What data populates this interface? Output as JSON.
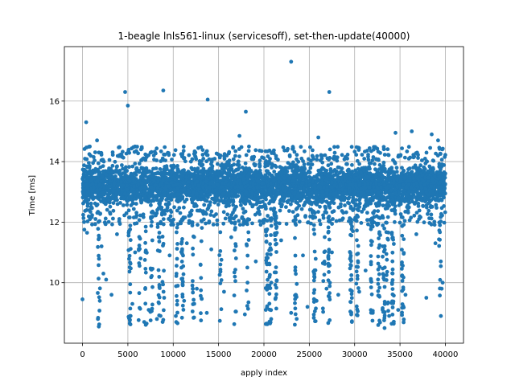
{
  "chart_data": {
    "type": "scatter",
    "title": "1-beagle lnls561-linux (servicesoff), set-then-update(40000)",
    "xlabel": "apply index",
    "ylabel": "Time [ms]",
    "xlim": [
      -2000,
      42000
    ],
    "ylim": [
      8.0,
      17.8
    ],
    "xticks": [
      0,
      5000,
      10000,
      15000,
      20000,
      25000,
      30000,
      35000,
      40000
    ],
    "xtick_labels": [
      "0",
      "5000",
      "10000",
      "15000",
      "20000",
      "25000",
      "30000",
      "35000",
      "40000"
    ],
    "yticks": [
      10,
      12,
      14,
      16
    ],
    "ytick_labels": [
      "10",
      "12",
      "14",
      "16"
    ],
    "grid": true,
    "marker_color": "#1f77b4",
    "n_points": 40000,
    "band": {
      "x_range": [
        0,
        40000
      ],
      "y_range": [
        12.4,
        14.0
      ],
      "description_note": null
    },
    "series": [
      {
        "points": [
          [
            0,
            9.45
          ],
          [
            200,
            11.75
          ],
          [
            500,
            11.65
          ],
          [
            400,
            15.3
          ],
          [
            800,
            14.5
          ],
          [
            1600,
            14.7
          ],
          [
            4700,
            16.3
          ],
          [
            5000,
            15.85
          ],
          [
            8900,
            16.35
          ],
          [
            13800,
            16.05
          ],
          [
            18000,
            15.65
          ],
          [
            23000,
            17.3
          ],
          [
            27200,
            16.3
          ],
          [
            26000,
            14.8
          ],
          [
            17300,
            14.85
          ],
          [
            34500,
            14.95
          ],
          [
            36300,
            15.0
          ],
          [
            38500,
            14.9
          ],
          [
            39200,
            14.7
          ],
          [
            1700,
            8.8
          ],
          [
            1800,
            8.55
          ],
          [
            2300,
            10.3
          ],
          [
            2600,
            10.1
          ],
          [
            1900,
            9.4
          ],
          [
            3200,
            9.6
          ],
          [
            5200,
            8.65
          ],
          [
            5300,
            8.9
          ],
          [
            5500,
            9.3
          ],
          [
            6800,
            8.7
          ],
          [
            7300,
            9.1
          ],
          [
            8200,
            8.8
          ],
          [
            8600,
            8.9
          ],
          [
            9000,
            9.5
          ],
          [
            10500,
            9.9
          ],
          [
            11200,
            9.4
          ],
          [
            12300,
            8.85
          ],
          [
            12600,
            9.8
          ],
          [
            13700,
            9.0
          ],
          [
            15600,
            9.7
          ],
          [
            16800,
            10.2
          ],
          [
            17900,
            8.95
          ],
          [
            18300,
            9.35
          ],
          [
            20200,
            9.1
          ],
          [
            20800,
            8.8
          ],
          [
            21300,
            9.5
          ],
          [
            23000,
            9.0
          ],
          [
            23500,
            9.6
          ],
          [
            24800,
            9.2
          ],
          [
            25800,
            9.4
          ],
          [
            26900,
            9.8
          ],
          [
            28200,
            9.6
          ],
          [
            29700,
            8.7
          ],
          [
            30500,
            9.7
          ],
          [
            32000,
            9.0
          ],
          [
            32600,
            8.6
          ],
          [
            33300,
            8.5
          ],
          [
            33800,
            8.9
          ],
          [
            34800,
            9.1
          ],
          [
            35600,
            9.6
          ],
          [
            37900,
            9.5
          ],
          [
            39600,
            9.8
          ],
          [
            39700,
            10.0
          ],
          [
            2100,
            11.2
          ],
          [
            3800,
            11.6
          ],
          [
            5800,
            11.0
          ],
          [
            6400,
            10.8
          ],
          [
            7700,
            11.4
          ],
          [
            9600,
            10.9
          ],
          [
            11500,
            11.3
          ],
          [
            14200,
            11.1
          ],
          [
            15200,
            10.6
          ],
          [
            16400,
            11.5
          ],
          [
            19100,
            10.7
          ],
          [
            21900,
            11.4
          ],
          [
            24300,
            10.9
          ],
          [
            27500,
            11.0
          ],
          [
            29800,
            11.7
          ],
          [
            31200,
            10.4
          ],
          [
            33100,
            11.2
          ],
          [
            36800,
            11.6
          ],
          [
            38900,
            11.3
          ],
          [
            39500,
            10.7
          ]
        ]
      }
    ]
  }
}
